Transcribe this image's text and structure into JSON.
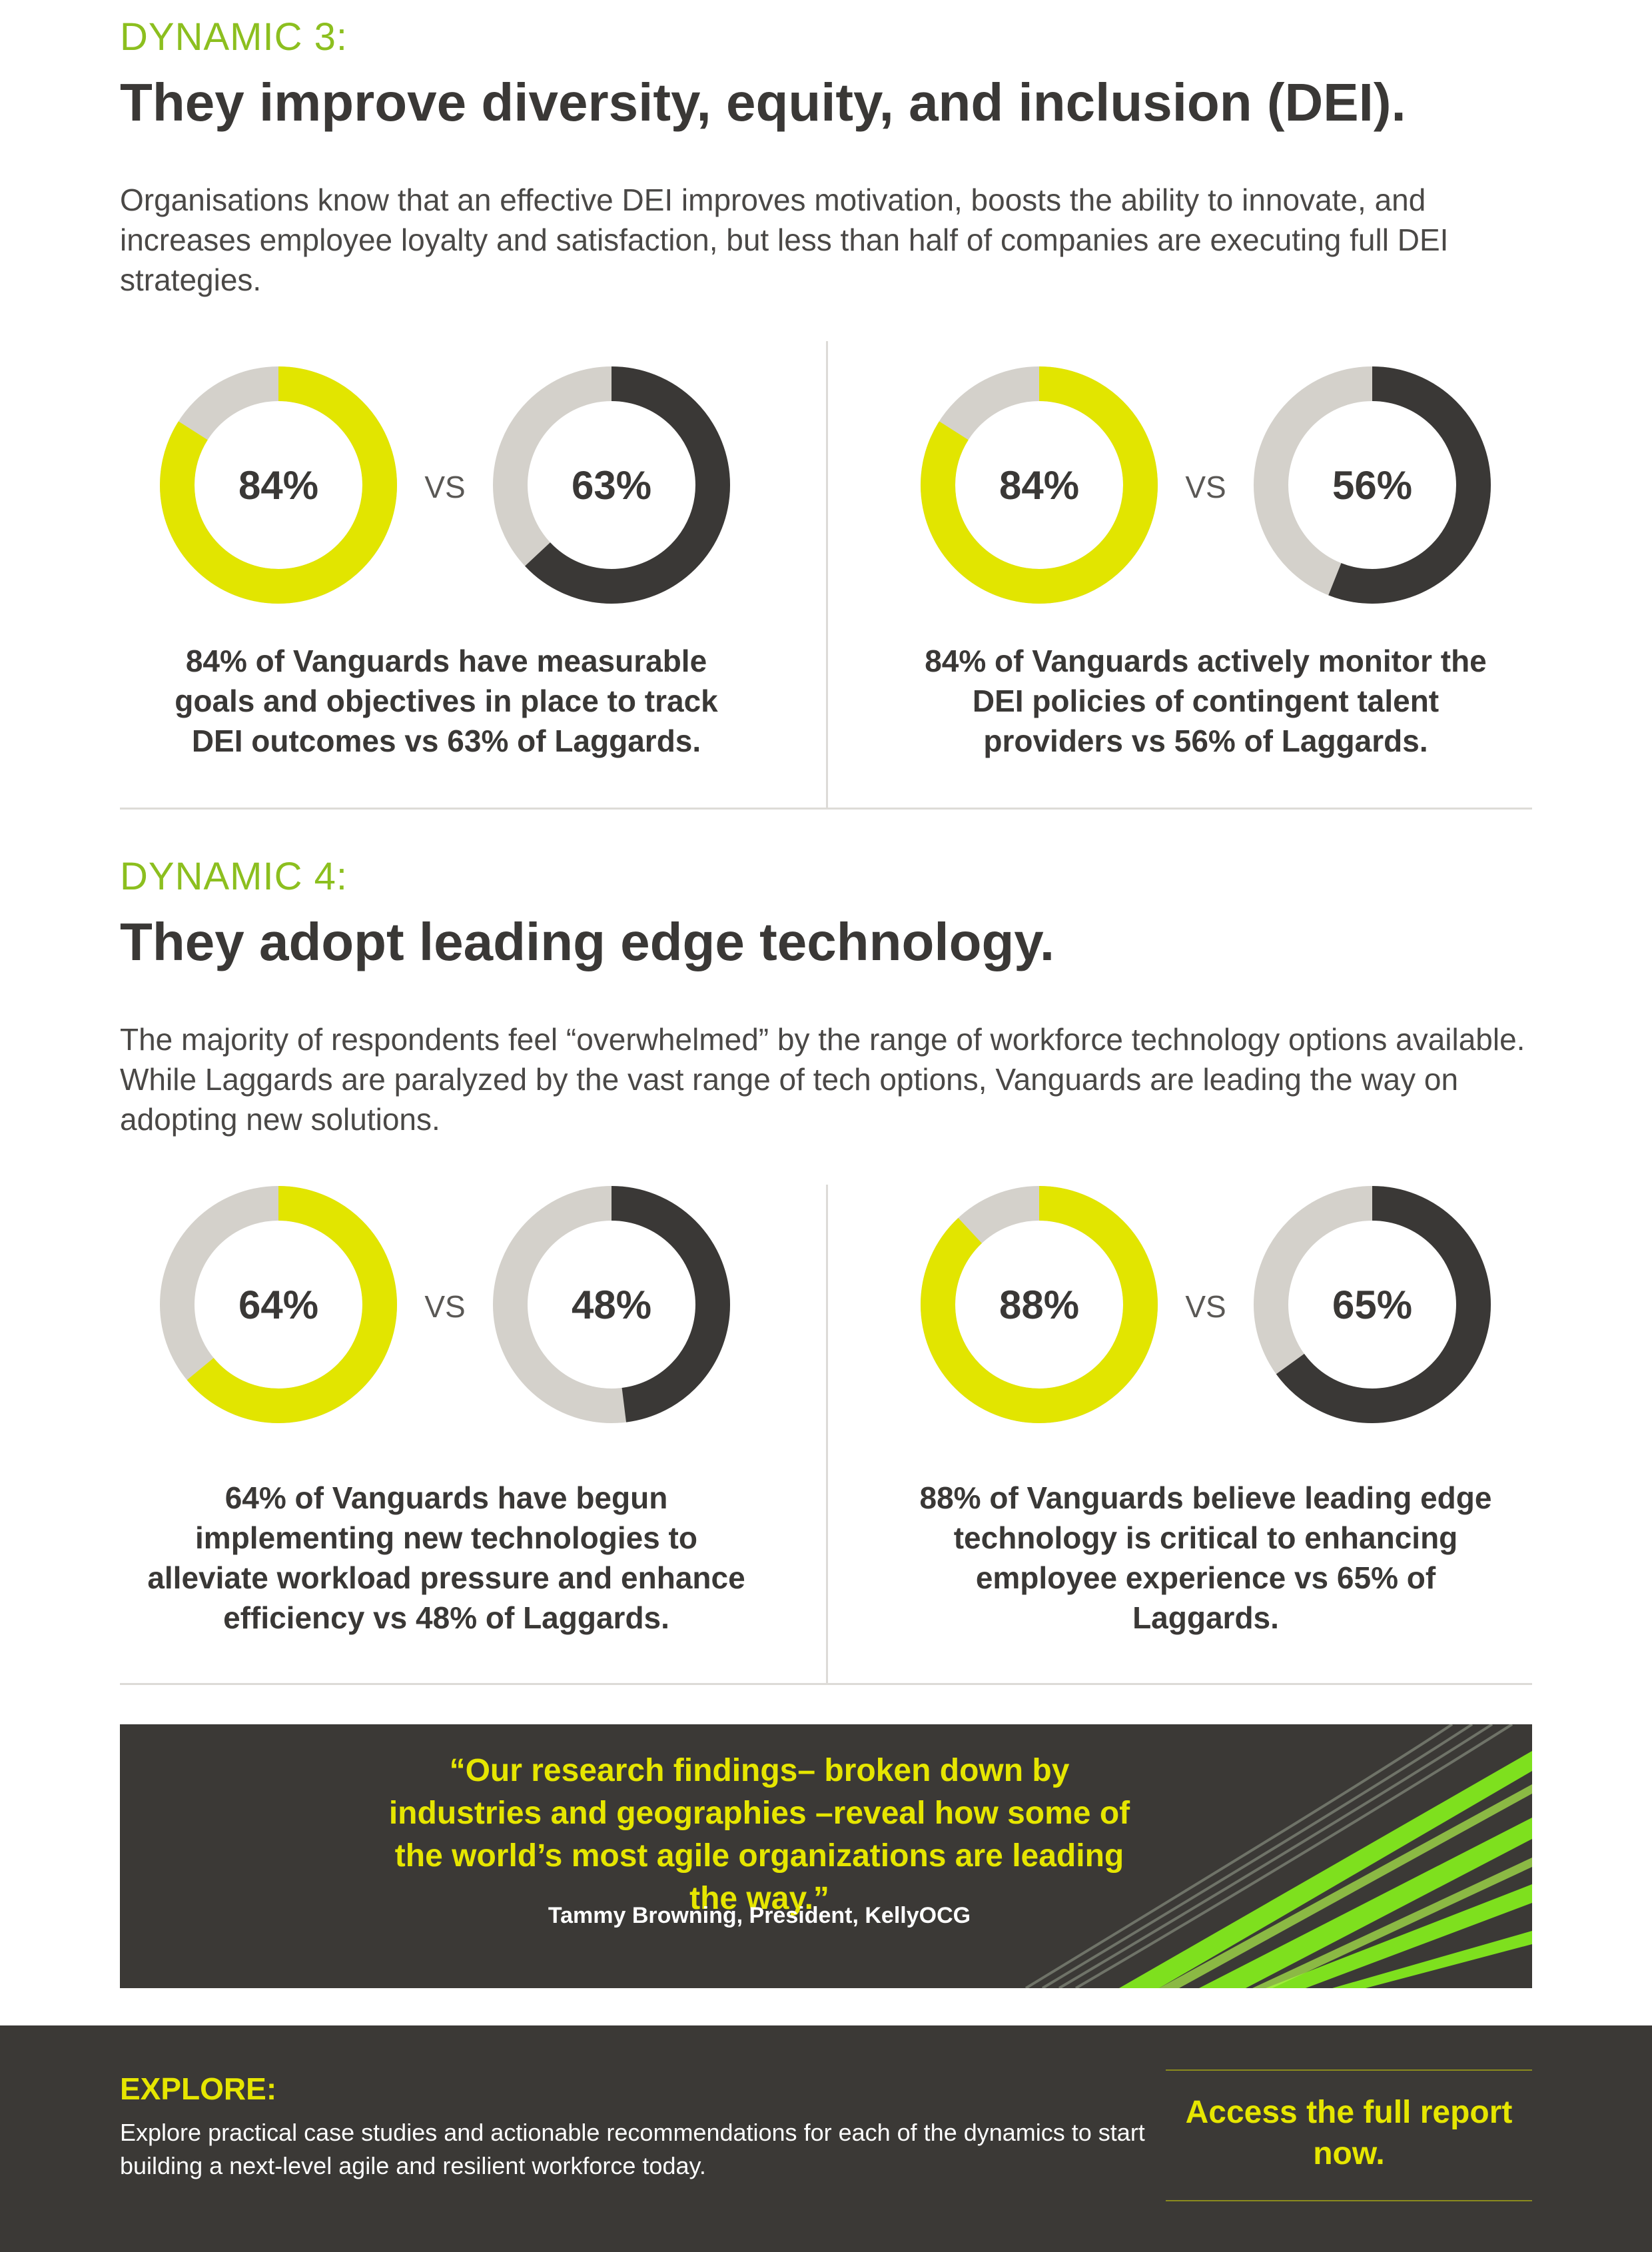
{
  "dynamic3": {
    "label": "DYNAMIC 3:",
    "title": "They improve diversity, equity, and inclusion (DEI).",
    "intro": "Organisations know that an effective DEI improves motivation, boosts the ability to innovate, and increases employee loyalty and satisfaction, but less than half of companies are executing full DEI strategies.",
    "stats": [
      {
        "vanguard_value": 84,
        "vanguard_label": "84%",
        "vs": "VS",
        "laggard_value": 63,
        "laggard_label": "63%",
        "caption": "84% of Vanguards have measurable goals and objectives in place to track DEI outcomes vs 63% of Laggards."
      },
      {
        "vanguard_value": 84,
        "vanguard_label": "84%",
        "vs": "VS",
        "laggard_value": 56,
        "laggard_label": "56%",
        "caption": "84% of Vanguards actively monitor the DEI policies of contingent talent providers vs 56% of Laggards."
      }
    ]
  },
  "dynamic4": {
    "label": "DYNAMIC 4:",
    "title": "They adopt leading edge technology.",
    "intro": "The majority of respondents feel “overwhelmed” by the range of workforce technology options available. While Laggards are paralyzed by the vast range of tech options, Vanguards are leading the way on adopting new solutions.",
    "stats": [
      {
        "vanguard_value": 64,
        "vanguard_label": "64%",
        "vs": "VS",
        "laggard_value": 48,
        "laggard_label": "48%",
        "caption": "64% of Vanguards have begun implementing new technologies to alleviate workload pressure and enhance efficiency vs 48% of Laggards."
      },
      {
        "vanguard_value": 88,
        "vanguard_label": "88%",
        "vs": "VS",
        "laggard_value": 65,
        "laggard_label": "65%",
        "caption": "88% of Vanguards believe leading edge technology is critical to enhancing employee experience vs 65% of Laggards."
      }
    ]
  },
  "quote": {
    "text": "“Our research findings– broken down by industries and geographies –reveal how some of the world’s most agile organizations are leading the way.”",
    "author": "Tammy Browning, President, KellyOCG"
  },
  "footer": {
    "explore_title": "EXPLORE:",
    "explore_body": "Explore practical case studies and actionable recommendations for each of the dynamics to start building a next-level agile and resilient workforce today.",
    "cta": "Access the full report now."
  },
  "colors": {
    "vanguard": "#e2e500",
    "laggard": "#3a3836",
    "track": "#d4d1cb",
    "accent_green": "#8cbf1f",
    "dark_bg": "#3b3936"
  }
}
